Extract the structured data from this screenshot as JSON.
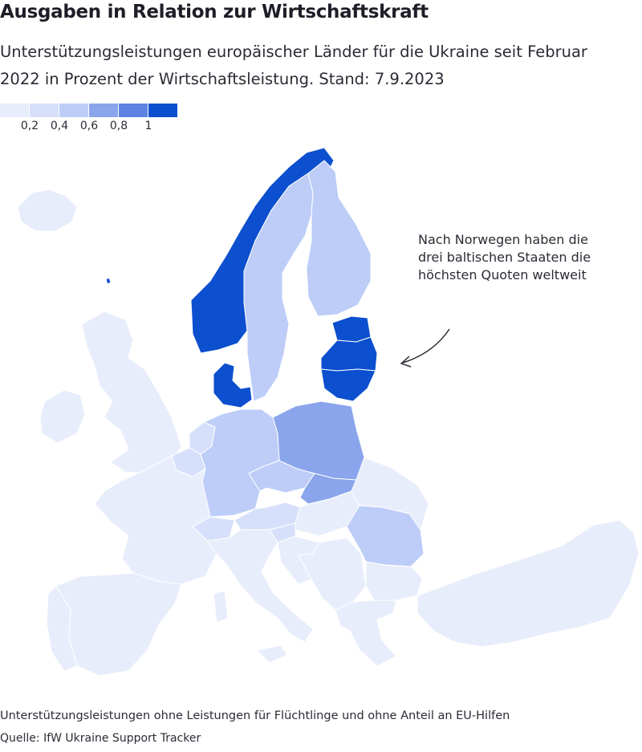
{
  "title": "Ausgaben in Relation zur Wirtschaftskraft",
  "subtitle": "Unterstützungsleistungen europäischer Länder für die Ukraine seit Februar 2022 in Prozent der Wirtschaftsleistung. Stand: 7.9.2023",
  "legend": {
    "colors": [
      "#e8edfb",
      "#d6e0fa",
      "#bdcdf8",
      "#8aa5ec",
      "#5d82e1",
      "#0c4fcf"
    ],
    "ticks": [
      "0,2",
      "0,4",
      "0,6",
      "0,8",
      "1"
    ]
  },
  "map": {
    "country_classes": {
      "norway": 5,
      "denmark": 5,
      "estonia": 5,
      "latvia": 5,
      "lithuania": 5,
      "sweden": 2,
      "finland": 2,
      "germany": 2,
      "czechia": 2,
      "romania": 2,
      "poland": 3,
      "slovakia": 3,
      "uk": 0,
      "ireland": 0,
      "iceland": 0,
      "france": 0,
      "spain": 0,
      "portugal": 0,
      "italy": 0,
      "netherlands": 1,
      "belgium": 1,
      "austria": 1,
      "switzerland": 1,
      "hungary": 0,
      "slovenia": 1,
      "croatia": 0,
      "balkans": 0,
      "bulgaria": 0,
      "greece": 0,
      "turkey": 0,
      "ukraine_region": 0
    }
  },
  "annotation": "Nach Norwegen haben die drei baltischen Staaten die höchsten Quoten weltweit",
  "note": "Unterstützungsleistungen ohne Leistungen für Flüchtlinge und ohne Anteil an EU-Hilfen",
  "source": "Quelle: IfW Ukraine Support Tracker"
}
